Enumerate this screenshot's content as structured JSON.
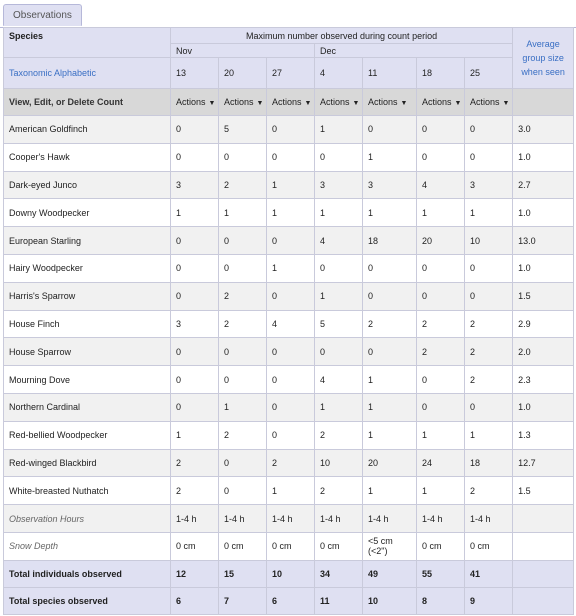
{
  "tab": {
    "label": "Observations"
  },
  "header": {
    "species": "Species",
    "period": "Maximum number observed during count period",
    "taxonomic": "Taxonomic Alphabetic",
    "avg": "Average group size when seen",
    "view_edit": "View, Edit, or Delete Count",
    "months": [
      "Nov",
      "Dec"
    ],
    "dates": [
      "13",
      "20",
      "27",
      "4",
      "11",
      "18",
      "25"
    ],
    "action": "Actions"
  },
  "rows": [
    {
      "name": "American Goldfinch",
      "v": [
        "0",
        "5",
        "0",
        "1",
        "0",
        "0",
        "0"
      ],
      "avg": "3.0"
    },
    {
      "name": "Cooper's Hawk",
      "v": [
        "0",
        "0",
        "0",
        "0",
        "1",
        "0",
        "0"
      ],
      "avg": "1.0"
    },
    {
      "name": "Dark-eyed Junco",
      "v": [
        "3",
        "2",
        "1",
        "3",
        "3",
        "4",
        "3"
      ],
      "avg": "2.7"
    },
    {
      "name": "Downy Woodpecker",
      "v": [
        "1",
        "1",
        "1",
        "1",
        "1",
        "1",
        "1"
      ],
      "avg": "1.0"
    },
    {
      "name": "European Starling",
      "v": [
        "0",
        "0",
        "0",
        "4",
        "18",
        "20",
        "10"
      ],
      "avg": "13.0"
    },
    {
      "name": "Hairy Woodpecker",
      "v": [
        "0",
        "0",
        "1",
        "0",
        "0",
        "0",
        "0"
      ],
      "avg": "1.0"
    },
    {
      "name": "Harris's Sparrow",
      "v": [
        "0",
        "2",
        "0",
        "1",
        "0",
        "0",
        "0"
      ],
      "avg": "1.5"
    },
    {
      "name": "House Finch",
      "v": [
        "3",
        "2",
        "4",
        "5",
        "2",
        "2",
        "2"
      ],
      "avg": "2.9"
    },
    {
      "name": "House Sparrow",
      "v": [
        "0",
        "0",
        "0",
        "0",
        "0",
        "2",
        "2"
      ],
      "avg": "2.0"
    },
    {
      "name": "Mourning Dove",
      "v": [
        "0",
        "0",
        "0",
        "4",
        "1",
        "0",
        "2"
      ],
      "avg": "2.3"
    },
    {
      "name": "Northern Cardinal",
      "v": [
        "0",
        "1",
        "0",
        "1",
        "1",
        "0",
        "0"
      ],
      "avg": "1.0"
    },
    {
      "name": "Red-bellied Woodpecker",
      "v": [
        "1",
        "2",
        "0",
        "2",
        "1",
        "1",
        "1"
      ],
      "avg": "1.3"
    },
    {
      "name": "Red-winged Blackbird",
      "v": [
        "2",
        "0",
        "2",
        "10",
        "20",
        "24",
        "18"
      ],
      "avg": "12.7"
    },
    {
      "name": "White-breasted Nuthatch",
      "v": [
        "2",
        "0",
        "1",
        "2",
        "1",
        "1",
        "2"
      ],
      "avg": "1.5"
    },
    {
      "name": "Observation Hours",
      "italic": true,
      "v": [
        "1-4 h",
        "1-4 h",
        "1-4 h",
        "1-4 h",
        "1-4 h",
        "1-4 h",
        "1-4 h"
      ],
      "avg": ""
    },
    {
      "name": "Snow Depth",
      "italic": true,
      "v": [
        "0 cm",
        "0 cm",
        "0 cm",
        "0 cm",
        "<5 cm (<2\")",
        "0 cm",
        "0 cm"
      ],
      "avg": ""
    }
  ],
  "footer": [
    {
      "name": "Total individuals observed",
      "v": [
        "12",
        "15",
        "10",
        "34",
        "49",
        "55",
        "41"
      ],
      "avg": ""
    },
    {
      "name": "Total species observed",
      "v": [
        "6",
        "7",
        "6",
        "11",
        "10",
        "8",
        "9"
      ],
      "avg": ""
    }
  ]
}
